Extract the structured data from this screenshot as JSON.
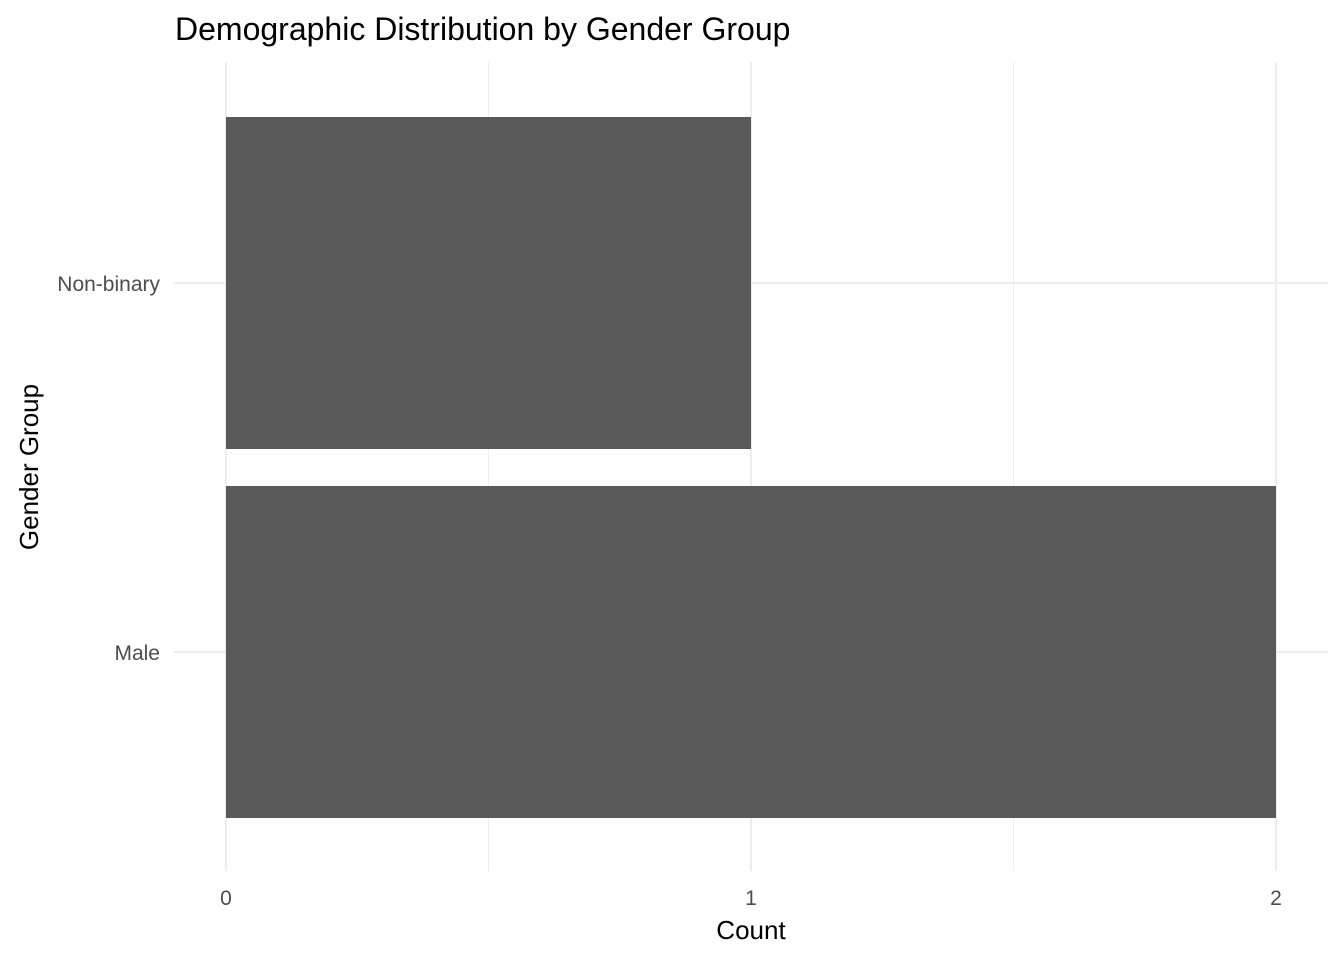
{
  "chart_data": {
    "type": "bar",
    "orientation": "horizontal",
    "title": "Demographic Distribution by Gender Group",
    "xlabel": "Count",
    "ylabel": "Gender Group",
    "categories": [
      "Male",
      "Non-binary"
    ],
    "values": [
      2,
      1
    ],
    "xlim": [
      0,
      2
    ],
    "x_ticks": [
      0,
      1,
      2
    ],
    "x_tick_labels": [
      "0",
      "1",
      "2"
    ],
    "grid": true,
    "legend": "none",
    "bar_color": "#595959",
    "grid_color": "#ebebeb",
    "background": "#ffffff"
  }
}
